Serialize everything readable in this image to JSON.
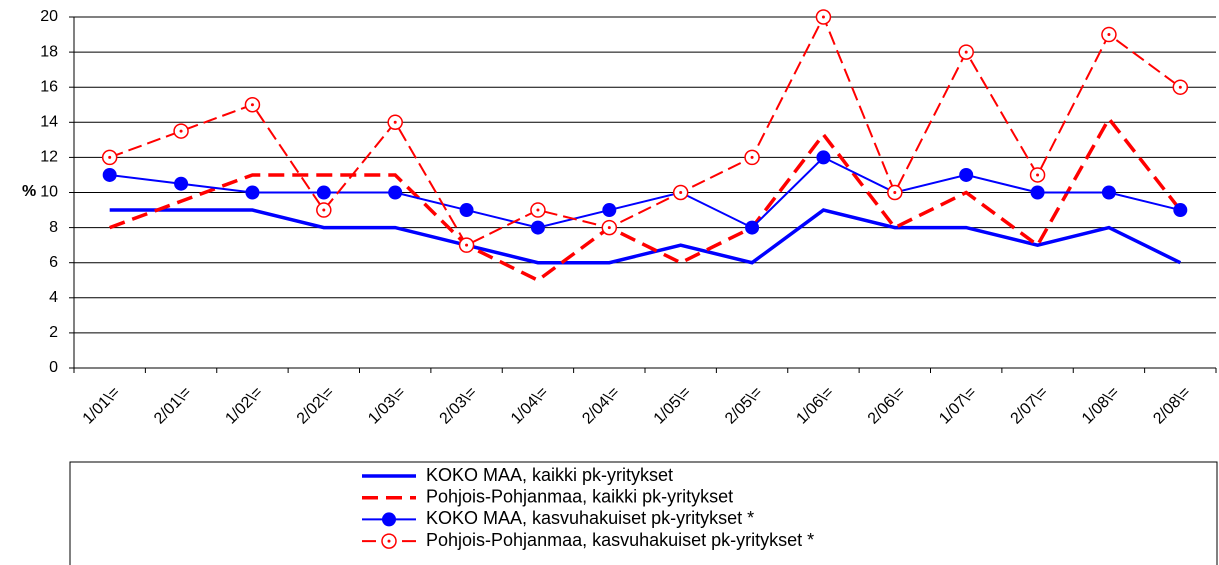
{
  "chart_data": {
    "type": "line",
    "ylabel": "%",
    "categories": [
      "1/01\\=",
      "2/01\\=",
      "1/02\\=",
      "2/02\\=",
      "1/03\\=",
      "2/03\\=",
      "1/04\\=",
      "2/04\\=",
      "1/05\\=",
      "2/05\\=",
      "1/06\\=",
      "2/06\\=",
      "1/07\\=",
      "2/07\\=",
      "1/08\\=",
      "2/08\\="
    ],
    "series": [
      {
        "name": "KOKO MAA, kaikki pk-yritykset",
        "color": "#0000ff",
        "line_style": "solid",
        "marker": "none",
        "values": [
          9,
          9,
          9,
          8,
          8,
          7,
          6,
          6,
          7,
          6,
          9,
          8,
          8,
          7,
          8,
          6
        ]
      },
      {
        "name": "Pohjois-Pohjanmaa, kaikki pk-yritykset",
        "color": "#ff0000",
        "line_style": "dashed",
        "marker": "none",
        "values": [
          8,
          9.5,
          11,
          11,
          11,
          7,
          5,
          8,
          6,
          8,
          13.3,
          8,
          10,
          7,
          14.2,
          9
        ]
      },
      {
        "name": "KOKO MAA, kasvuhakuiset pk-yritykset *",
        "color": "#0000ff",
        "line_style": "solid",
        "marker": "filled-circle",
        "values": [
          11,
          10.5,
          10,
          10,
          10,
          9,
          8,
          9,
          10,
          8,
          12,
          10,
          11,
          10,
          10,
          9
        ]
      },
      {
        "name": "Pohjois-Pohjanmaa, kasvuhakuiset pk-yritykset *",
        "color": "#ff0000",
        "line_style": "dashed",
        "marker": "open-circle",
        "values": [
          12,
          13.5,
          15,
          9,
          14,
          7,
          9,
          8,
          10,
          12,
          20,
          10,
          18,
          11,
          19,
          16
        ]
      }
    ],
    "ylim": [
      0,
      20
    ],
    "yticks": [
      0,
      2,
      4,
      6,
      8,
      10,
      12,
      14,
      16,
      18,
      20
    ],
    "grid": true,
    "legend": "bottom"
  }
}
